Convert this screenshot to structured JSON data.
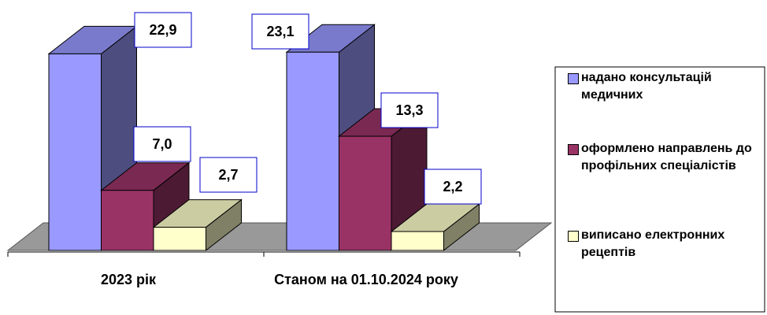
{
  "chart_data": {
    "type": "bar3d",
    "categories": [
      "2023 рік",
      "Станом на 01.10.2024 року"
    ],
    "series": [
      {
        "name": "надано консультацій медичних",
        "color": "#9999ff",
        "values": [
          22.9,
          23.1
        ],
        "value_labels": [
          "22,9",
          "23,1"
        ]
      },
      {
        "name": "оформлено направлень до профільних спеціалістів",
        "color": "#993366",
        "values": [
          7.0,
          13.3
        ],
        "value_labels": [
          "7,0",
          "13,3"
        ]
      },
      {
        "name": "виписано електронних рецептів",
        "color": "#ffffcc",
        "values": [
          2.7,
          2.2
        ],
        "value_labels": [
          "2,7",
          "2,2"
        ]
      }
    ],
    "legend": "right"
  }
}
